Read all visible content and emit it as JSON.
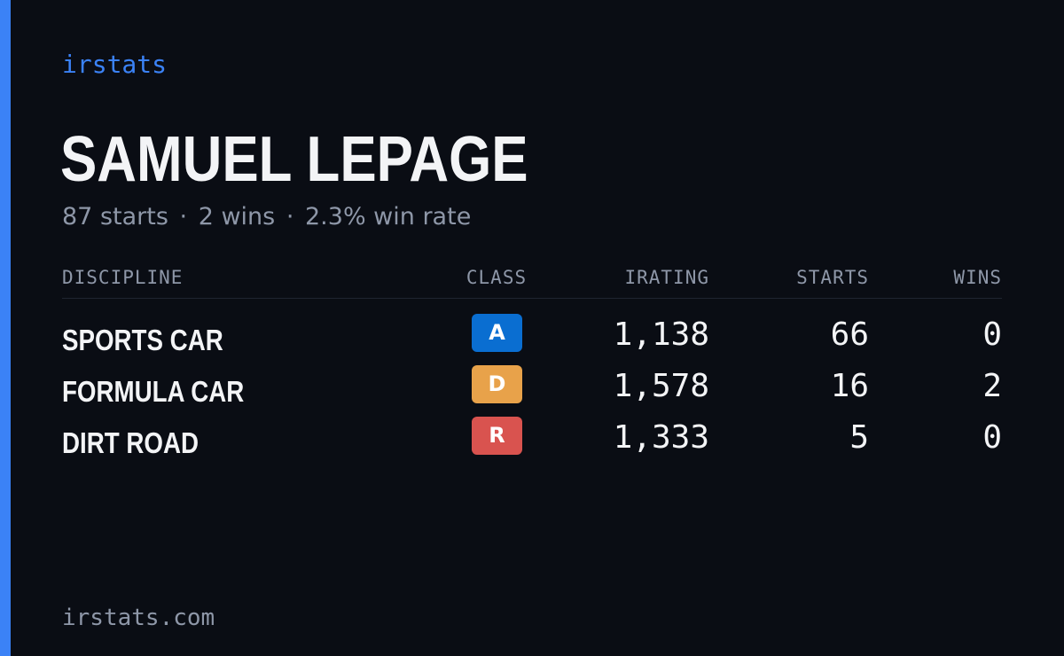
{
  "colors": {
    "accent": "#3b82f6",
    "background": "#0a0d14",
    "class_a": "#0a6ed1",
    "class_d": "#e8a24a",
    "class_r": "#d9534f"
  },
  "brand": "irstats",
  "driver": {
    "name": "SAMUEL LEPAGE",
    "starts_text": "87 starts",
    "wins_text": "2 wins",
    "win_rate_text": "2.3% win rate",
    "separator": "·"
  },
  "table": {
    "headers": {
      "discipline": "DISCIPLINE",
      "class": "CLASS",
      "irating": "IRATING",
      "starts": "STARTS",
      "wins": "WINS"
    },
    "rows": [
      {
        "discipline": "SPORTS CAR",
        "class": "A",
        "class_color": "#0a6ed1",
        "irating": "1,138",
        "starts": "66",
        "wins": "0"
      },
      {
        "discipline": "FORMULA CAR",
        "class": "D",
        "class_color": "#e8a24a",
        "irating": "1,578",
        "starts": "16",
        "wins": "2"
      },
      {
        "discipline": "DIRT ROAD",
        "class": "R",
        "class_color": "#d9534f",
        "irating": "1,333",
        "starts": "5",
        "wins": "0"
      }
    ]
  },
  "footer": "irstats.com"
}
